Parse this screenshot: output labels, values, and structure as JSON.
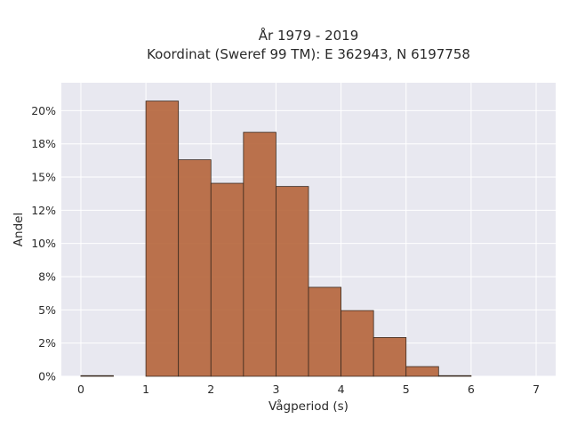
{
  "chart_data": {
    "type": "bar",
    "title_line1": "År 1979 - 2019",
    "title_line2": "Koordinat (Sweref 99 TM): E 362943, N 6197758",
    "xlabel": "Vågperiod (s)",
    "ylabel": "Andel",
    "xlim": [
      -0.3,
      7.3
    ],
    "ylim": [
      0,
      0.221
    ],
    "x_ticks": [
      0,
      1,
      2,
      3,
      4,
      5,
      6,
      7
    ],
    "x_tick_labels": [
      "0",
      "1",
      "2",
      "3",
      "4",
      "5",
      "6",
      "7"
    ],
    "y_ticks": [
      0,
      0.025,
      0.05,
      0.075,
      0.1,
      0.125,
      0.15,
      0.175,
      0.2
    ],
    "y_tick_labels": [
      "0%",
      "2%",
      "5%",
      "8%",
      "10%",
      "12%",
      "15%",
      "18%",
      "20%"
    ],
    "bin_width": 0.5,
    "bins": [
      {
        "start": 0.0,
        "value": 0.0005
      },
      {
        "start": 0.5,
        "value": 0.0
      },
      {
        "start": 1.0,
        "value": 0.2072
      },
      {
        "start": 1.5,
        "value": 0.163
      },
      {
        "start": 2.0,
        "value": 0.1453
      },
      {
        "start": 2.5,
        "value": 0.1837
      },
      {
        "start": 3.0,
        "value": 0.1429
      },
      {
        "start": 3.5,
        "value": 0.067
      },
      {
        "start": 4.0,
        "value": 0.0495
      },
      {
        "start": 4.5,
        "value": 0.0292
      },
      {
        "start": 5.0,
        "value": 0.0073
      },
      {
        "start": 5.5,
        "value": 0.0005
      },
      {
        "start": 6.0,
        "value": 0.0
      },
      {
        "start": 6.5,
        "value": 0.0
      }
    ],
    "grid": true,
    "bar_color": "#b5643a",
    "bar_edge_color": "#3a2a20",
    "plot_background": "#e8e8f0",
    "grid_color": "#ffffff"
  }
}
